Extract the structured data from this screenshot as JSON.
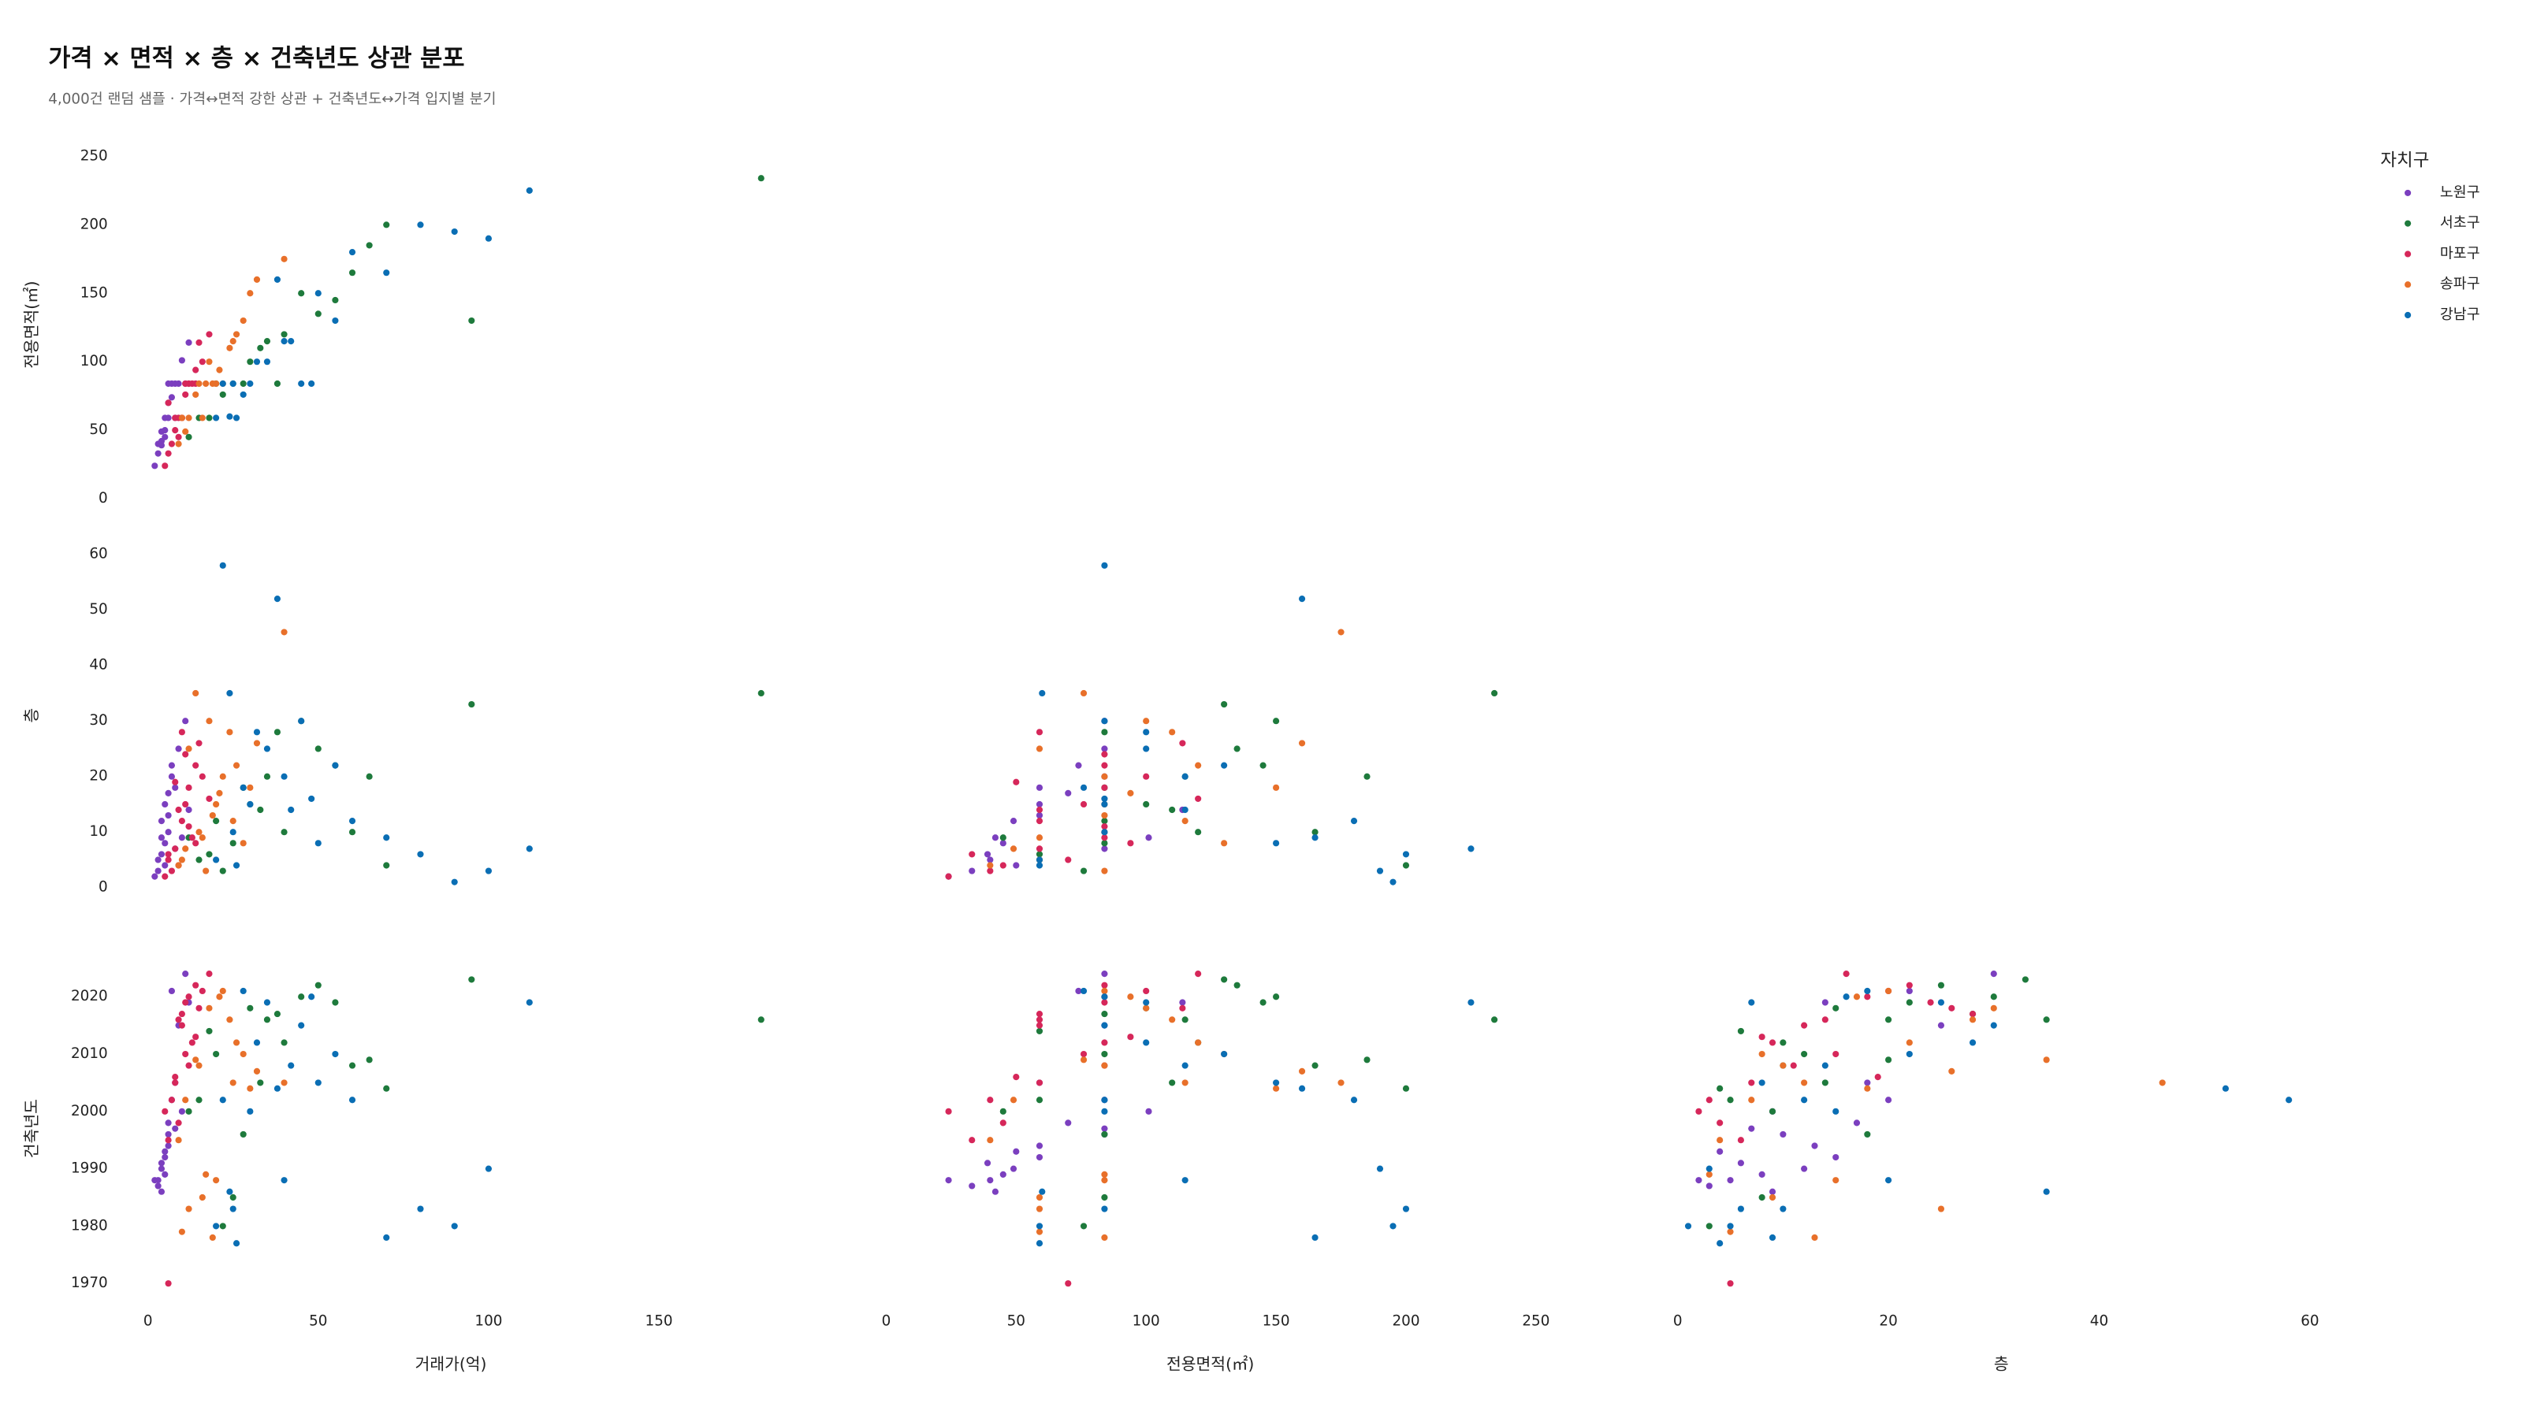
{
  "chart_data": {
    "type": "scatter",
    "title": "가격 × 면적 × 층 × 건축년도 상관 분포",
    "subtitle": "4,000건 랜덤 샘플 · 가격↔면적 강한 상관 + 건축년도↔가격 입지별 분기",
    "legend_title": "자치구",
    "dims": [
      {
        "label": "거래가(억)",
        "xlim": [
          -3,
          195
        ],
        "xticks": [
          0,
          50,
          100,
          150
        ]
      },
      {
        "label": "전용면적(㎡)",
        "xlim": [
          -4,
          272
        ],
        "xticks": [
          0,
          50,
          100,
          150,
          200,
          250
        ],
        "ylim": [
          -8,
          262
        ],
        "yticks": [
          0,
          50,
          100,
          150,
          200,
          250
        ]
      },
      {
        "label": "층",
        "xlim": [
          -1,
          67
        ],
        "xticks": [
          0,
          20,
          40,
          60
        ],
        "ylim": [
          -2,
          64
        ],
        "yticks": [
          0,
          10,
          20,
          30,
          40,
          50,
          60
        ]
      },
      {
        "label": "건축년도",
        "ylim": [
          1967,
          2027
        ],
        "yticks": [
          1970,
          1980,
          1990,
          2000,
          2010,
          2020
        ]
      }
    ],
    "series": [
      {
        "name": "노원구",
        "color": "#7b3fbf",
        "values": [
          [
            3,
            40,
            5,
            1988
          ],
          [
            4,
            49,
            12,
            1990
          ],
          [
            5,
            59,
            15,
            1992
          ],
          [
            6,
            84,
            10,
            1996
          ],
          [
            7,
            84,
            20,
            2002
          ],
          [
            3,
            33,
            3,
            1987
          ],
          [
            5,
            45,
            8,
            1989
          ],
          [
            8,
            59,
            18,
            2005
          ],
          [
            9,
            84,
            25,
            2015
          ],
          [
            4,
            39,
            6,
            1991
          ],
          [
            6,
            59,
            13,
            1994
          ],
          [
            10,
            101,
            9,
            2000
          ],
          [
            2,
            24,
            2,
            1988
          ],
          [
            7,
            74,
            22,
            2021
          ],
          [
            12,
            114,
            14,
            2019
          ],
          [
            5,
            50,
            4,
            1993
          ],
          [
            6,
            70,
            17,
            1998
          ],
          [
            11,
            84,
            30,
            2024
          ],
          [
            4,
            42,
            9,
            1986
          ],
          [
            8,
            84,
            7,
            1997
          ]
        ]
      },
      {
        "name": "서초구",
        "color": "#1e7a3c",
        "values": [
          [
            20,
            84,
            12,
            2010
          ],
          [
            35,
            115,
            20,
            2016
          ],
          [
            25,
            84,
            8,
            1985
          ],
          [
            45,
            150,
            30,
            2020
          ],
          [
            60,
            165,
            10,
            2008
          ],
          [
            15,
            59,
            5,
            2002
          ],
          [
            30,
            100,
            15,
            2018
          ],
          [
            50,
            135,
            25,
            2022
          ],
          [
            70,
            200,
            4,
            2004
          ],
          [
            28,
            84,
            18,
            1996
          ],
          [
            40,
            120,
            10,
            2012
          ],
          [
            18,
            59,
            6,
            2014
          ],
          [
            55,
            145,
            22,
            2019
          ],
          [
            22,
            76,
            3,
            1980
          ],
          [
            33,
            110,
            14,
            2005
          ],
          [
            95,
            130,
            33,
            2023
          ],
          [
            180,
            234,
            35,
            2016
          ],
          [
            65,
            185,
            20,
            2009
          ],
          [
            12,
            45,
            9,
            2000
          ],
          [
            38,
            84,
            28,
            2017
          ]
        ]
      },
      {
        "name": "마포구",
        "color": "#d6275a",
        "values": [
          [
            10,
            59,
            12,
            2015
          ],
          [
            12,
            84,
            18,
            2020
          ],
          [
            8,
            59,
            7,
            2005
          ],
          [
            14,
            84,
            22,
            2022
          ],
          [
            9,
            45,
            4,
            1998
          ],
          [
            11,
            76,
            15,
            2010
          ],
          [
            15,
            114,
            26,
            2018
          ],
          [
            7,
            40,
            3,
            2002
          ],
          [
            13,
            84,
            9,
            2012
          ],
          [
            16,
            100,
            20,
            2021
          ],
          [
            6,
            33,
            6,
            1995
          ],
          [
            10,
            59,
            28,
            2017
          ],
          [
            12,
            84,
            11,
            2008
          ],
          [
            18,
            120,
            16,
            2024
          ],
          [
            5,
            24,
            2,
            2000
          ],
          [
            9,
            59,
            14,
            2016
          ],
          [
            6,
            70,
            5,
            1970
          ],
          [
            11,
            84,
            24,
            2019
          ],
          [
            14,
            94,
            8,
            2013
          ],
          [
            8,
            50,
            19,
            2006
          ]
        ]
      },
      {
        "name": "송파구",
        "color": "#e8702a",
        "values": [
          [
            15,
            84,
            10,
            2008
          ],
          [
            20,
            84,
            15,
            1988
          ],
          [
            12,
            59,
            25,
            1983
          ],
          [
            18,
            100,
            30,
            2018
          ],
          [
            25,
            115,
            12,
            2005
          ],
          [
            10,
            59,
            5,
            1979
          ],
          [
            22,
            84,
            20,
            2021
          ],
          [
            28,
            130,
            8,
            2010
          ],
          [
            14,
            76,
            35,
            2009
          ],
          [
            17,
            84,
            3,
            1989
          ],
          [
            30,
            150,
            18,
            2004
          ],
          [
            11,
            49,
            7,
            2002
          ],
          [
            24,
            110,
            28,
            2016
          ],
          [
            19,
            84,
            13,
            1978
          ],
          [
            26,
            120,
            22,
            2012
          ],
          [
            40,
            175,
            46,
            2005
          ],
          [
            9,
            40,
            4,
            1995
          ],
          [
            21,
            94,
            17,
            2020
          ],
          [
            16,
            59,
            9,
            1985
          ],
          [
            32,
            160,
            26,
            2007
          ]
        ]
      },
      {
        "name": "강남구",
        "color": "#0a6eb4",
        "values": [
          [
            25,
            84,
            10,
            1983
          ],
          [
            30,
            84,
            15,
            2000
          ],
          [
            40,
            115,
            20,
            1988
          ],
          [
            50,
            150,
            8,
            2005
          ],
          [
            35,
            100,
            25,
            2019
          ],
          [
            20,
            59,
            5,
            1980
          ],
          [
            60,
            180,
            12,
            2002
          ],
          [
            45,
            84,
            30,
            2015
          ],
          [
            80,
            200,
            6,
            1983
          ],
          [
            28,
            76,
            18,
            2021
          ],
          [
            55,
            130,
            22,
            2010
          ],
          [
            100,
            190,
            3,
            1990
          ],
          [
            24,
            60,
            35,
            1986
          ],
          [
            42,
            115,
            14,
            2008
          ],
          [
            112,
            225,
            7,
            2019
          ],
          [
            22,
            84,
            58,
            2002
          ],
          [
            38,
            160,
            52,
            2004
          ],
          [
            70,
            165,
            9,
            1978
          ],
          [
            32,
            100,
            28,
            2012
          ],
          [
            26,
            59,
            4,
            1977
          ],
          [
            90,
            195,
            1,
            1980
          ],
          [
            48,
            84,
            16,
            2020
          ]
        ]
      }
    ]
  }
}
